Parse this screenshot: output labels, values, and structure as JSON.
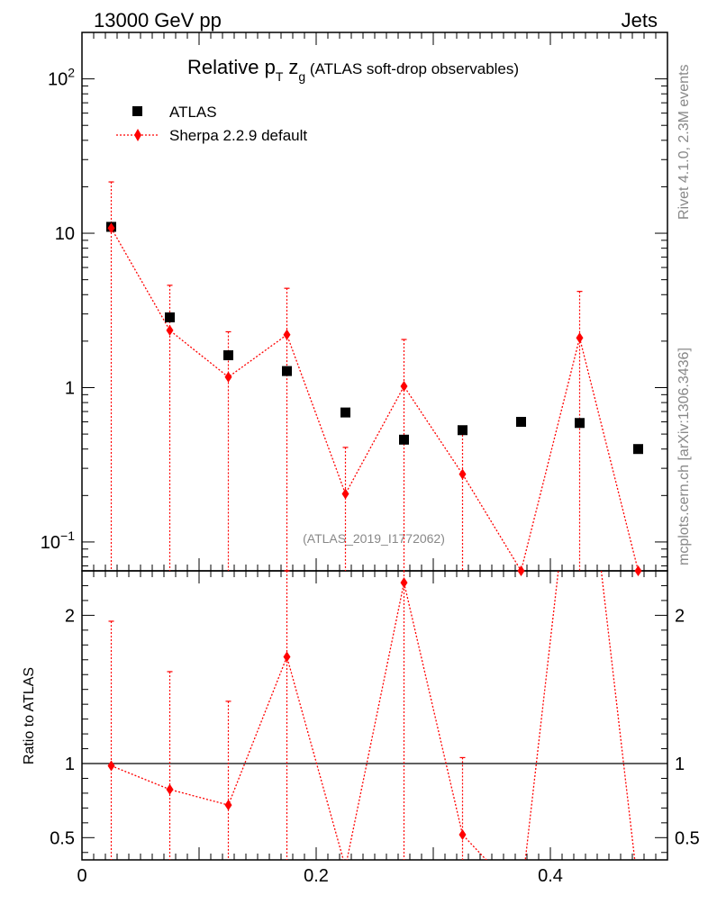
{
  "header": {
    "left": "13000 GeV pp",
    "right": "Jets"
  },
  "side_labels": {
    "rivet": "Rivet 4.1.0,  2.3M events",
    "mcplots": "mcplots.cern.ch [arXiv:1306.3436]"
  },
  "watermark": "(ATLAS_2019_I1772062)",
  "chart_data": {
    "type": "scatter",
    "title_parts": {
      "pre": "Relative ",
      "p": "p",
      "p_sub": "T",
      "z": "z",
      "z_sub": "g",
      "post": " (ATLAS soft-drop observables)"
    },
    "xlim": [
      0,
      0.5
    ],
    "x_ticks": [
      "0",
      "0.2",
      "0.4"
    ],
    "x_tick_values": [
      0,
      0.2,
      0.4
    ],
    "main": {
      "yscale": "log",
      "ylim": [
        0.065,
        200
      ],
      "y_tick_labels": [
        {
          "value": 100,
          "base": "10",
          "exp": "2"
        },
        {
          "value": 10,
          "base": "10",
          "exp": ""
        },
        {
          "value": 1,
          "base": "1",
          "exp": ""
        },
        {
          "value": 0.1,
          "base": "10",
          "exp": "−1"
        }
      ]
    },
    "ratio": {
      "ylabel": "Ratio to ATLAS",
      "ylim": [
        0.35,
        2.3
      ],
      "reference": 1,
      "y_ticks": [
        "0.5",
        "1",
        "2"
      ],
      "y_tick_values": [
        0.5,
        1,
        2
      ]
    },
    "x": [
      0.025,
      0.075,
      0.125,
      0.175,
      0.225,
      0.275,
      0.325,
      0.375,
      0.425,
      0.475
    ],
    "series": [
      {
        "name": "ATLAS",
        "color": "#000000",
        "marker": "square",
        "values": [
          11.0,
          2.85,
          1.62,
          1.28,
          0.69,
          0.46,
          0.53,
          0.6,
          0.59,
          0.4
        ]
      },
      {
        "name": "Sherpa 2.2.9 default",
        "color": "#ff0000",
        "marker": "diamond",
        "line": "dotted",
        "values": [
          10.8,
          2.35,
          1.17,
          2.2,
          0.205,
          1.02,
          0.275,
          0.06,
          2.1,
          0.06
        ],
        "err_up": [
          21.5,
          4.6,
          2.3,
          4.4,
          0.41,
          2.05,
          0.55,
          null,
          4.2,
          null
        ],
        "err_down": [
          null,
          null,
          null,
          null,
          null,
          null,
          null,
          null,
          null,
          null
        ],
        "ratio": [
          0.985,
          0.825,
          0.72,
          1.72,
          0.3,
          2.22,
          0.52,
          0.1,
          3.56,
          0.15
        ],
        "ratio_err_up": [
          1.96,
          1.62,
          1.42,
          3.4,
          null,
          null,
          1.04,
          null,
          null,
          null
        ]
      }
    ]
  }
}
